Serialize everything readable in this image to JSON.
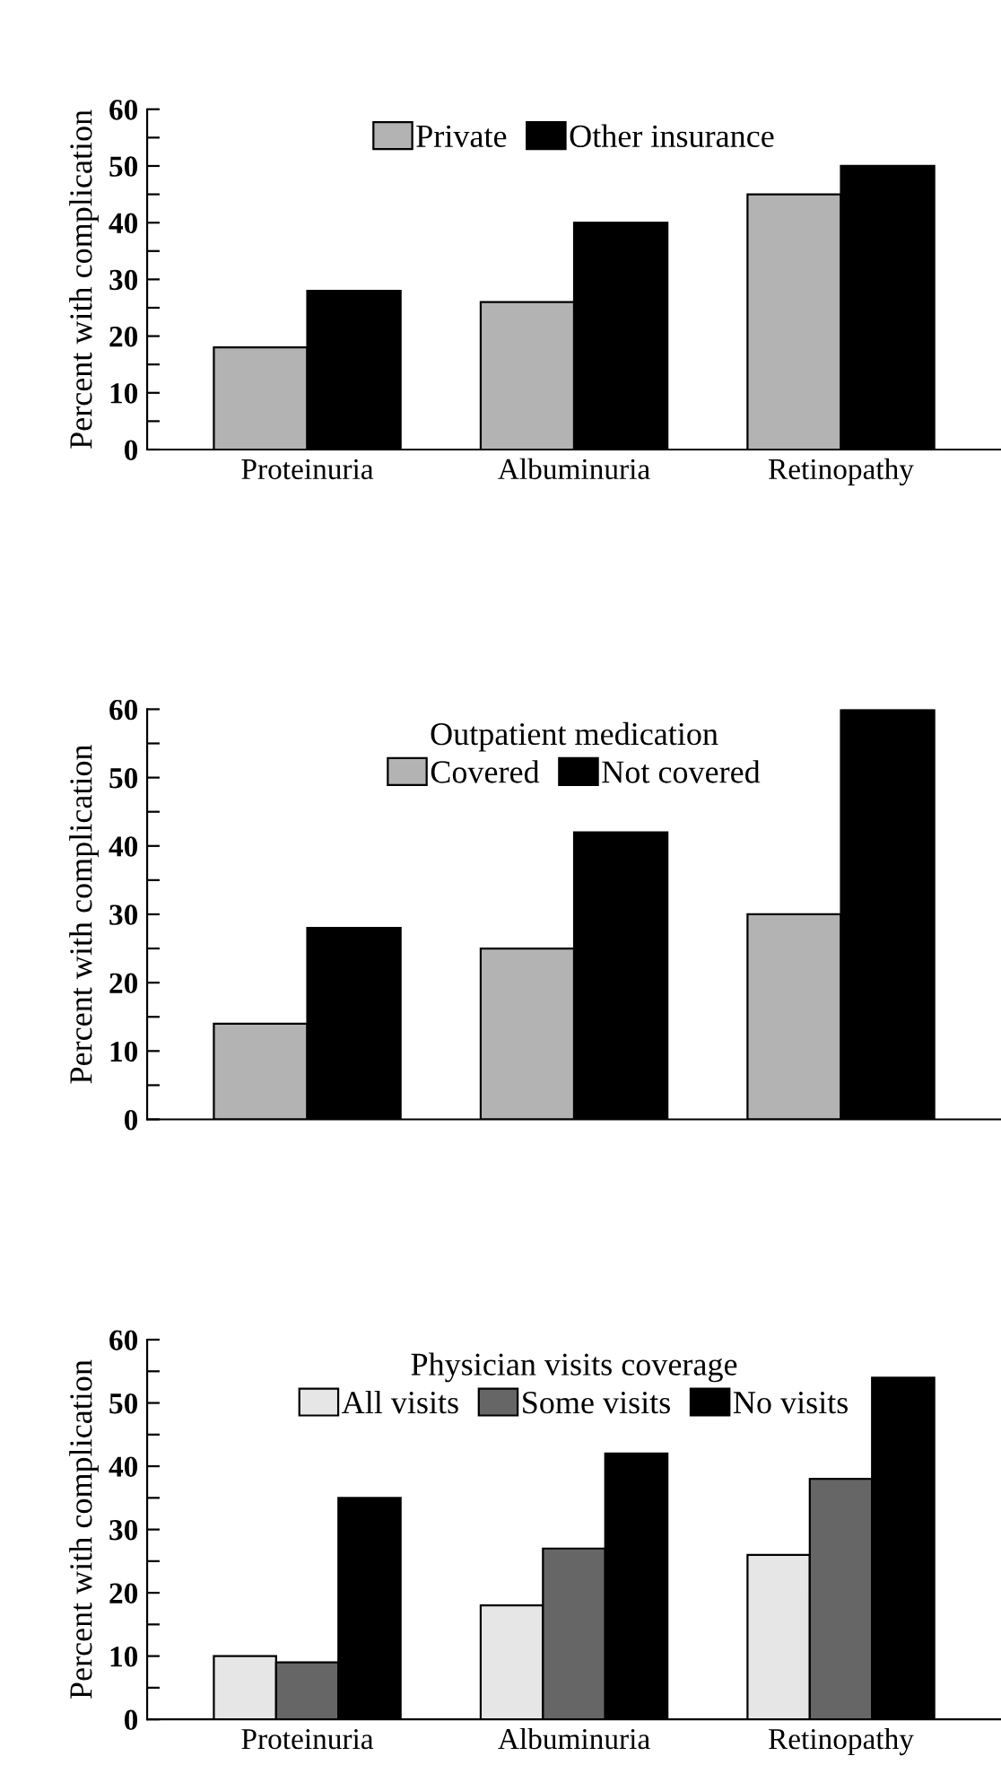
{
  "chart_data": [
    {
      "type": "bar",
      "ylabel": "Percent with complication",
      "categories": [
        "Proteinuria",
        "Albuminuria",
        "Retinopathy"
      ],
      "series": [
        {
          "name": "Private",
          "color": "#b3b3b3",
          "values": [
            18,
            26,
            45
          ]
        },
        {
          "name": "Other insurance",
          "color": "#000000",
          "values": [
            28,
            40,
            50
          ]
        }
      ],
      "ylim": [
        0,
        60
      ],
      "yticks": [
        0,
        {
          "value": 5,
          "label": null
        },
        10,
        {
          "value": 15,
          "label": null
        },
        20,
        {
          "value": 25,
          "label": null
        },
        30,
        {
          "value": 35,
          "label": null
        },
        40,
        {
          "value": 45,
          "label": null
        },
        50,
        {
          "value": 55,
          "label": null
        },
        60
      ],
      "grid": false,
      "legend": "top"
    },
    {
      "type": "bar",
      "ylabel": "Percent with complication",
      "legend_title": "Outpatient medication",
      "categories": [
        null,
        null,
        null
      ],
      "series": [
        {
          "name": "Covered",
          "color": "#b3b3b3",
          "values": [
            14,
            25,
            30
          ]
        },
        {
          "name": "Not covered",
          "color": "#000000",
          "values": [
            28,
            42,
            60
          ]
        }
      ],
      "ylim": [
        0,
        60
      ],
      "yticks": [
        0,
        {
          "value": 5,
          "label": null
        },
        10,
        {
          "value": 15,
          "label": null
        },
        20,
        {
          "value": 25,
          "label": null
        },
        30,
        {
          "value": 35,
          "label": null
        },
        40,
        {
          "value": 45,
          "label": null
        },
        50,
        {
          "value": 55,
          "label": null
        },
        60
      ],
      "grid": false,
      "legend": "top"
    },
    {
      "type": "bar",
      "ylabel": "Percent with complication",
      "legend_title": "Physician visits coverage",
      "categories": [
        "Proteinuria",
        "Albuminuria",
        "Retinopathy"
      ],
      "series": [
        {
          "name": "All visits",
          "color": "#e6e6e6",
          "values": [
            10,
            18,
            26
          ]
        },
        {
          "name": "Some visits",
          "color": "#666666",
          "values": [
            9,
            27,
            38
          ]
        },
        {
          "name": "No visits",
          "color": "#000000",
          "values": [
            35,
            42,
            54
          ]
        }
      ],
      "ylim": [
        0,
        60
      ],
      "yticks": [
        0,
        {
          "value": 5,
          "label": null
        },
        10,
        {
          "value": 15,
          "label": null
        },
        20,
        {
          "value": 25,
          "label": null
        },
        30,
        {
          "value": 35,
          "label": null
        },
        40,
        {
          "value": 45,
          "label": null
        },
        50,
        {
          "value": 55,
          "label": null
        },
        60
      ],
      "grid": false,
      "legend": "top"
    }
  ]
}
